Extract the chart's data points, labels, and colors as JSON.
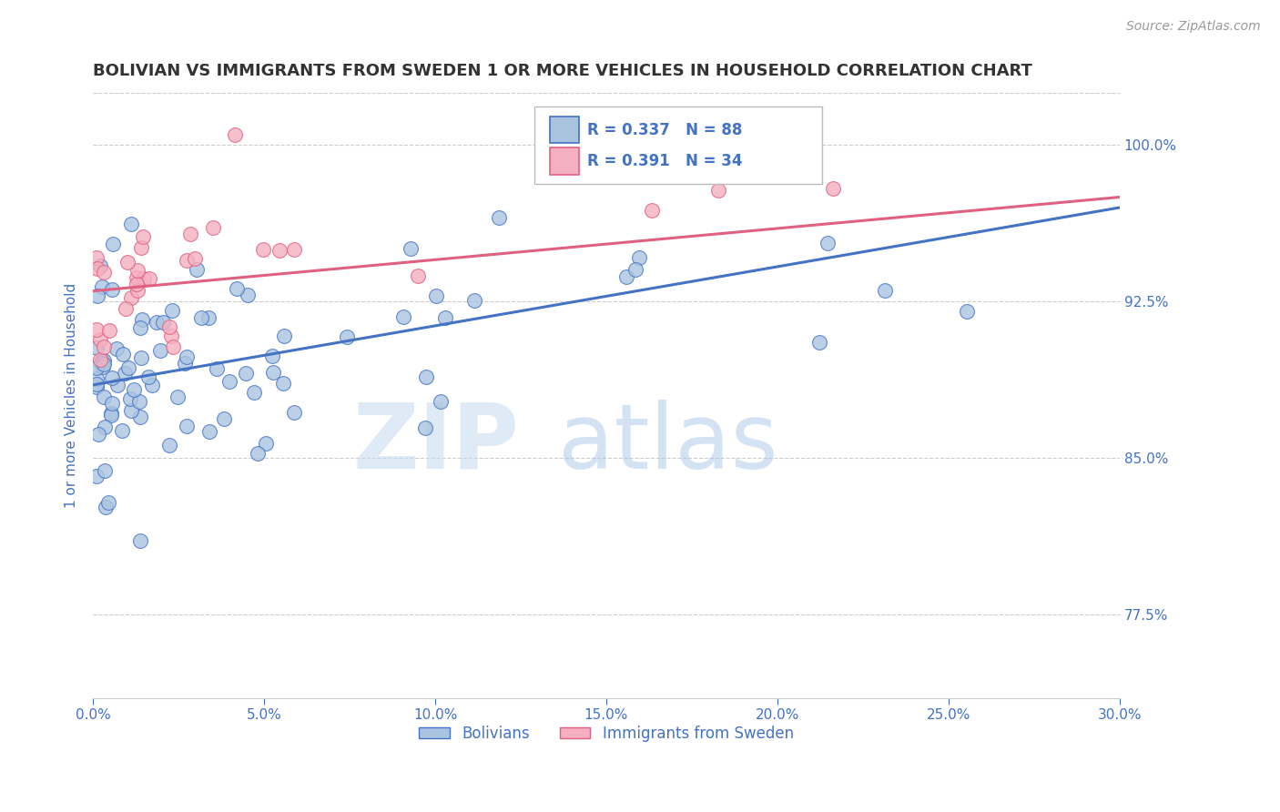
{
  "title": "BOLIVIAN VS IMMIGRANTS FROM SWEDEN 1 OR MORE VEHICLES IN HOUSEHOLD CORRELATION CHART",
  "source_text": "Source: ZipAtlas.com",
  "ylabel": "1 or more Vehicles in Household",
  "xlim": [
    0.0,
    0.3
  ],
  "ylim": [
    0.735,
    1.025
  ],
  "xtick_labels": [
    "0.0%",
    "5.0%",
    "10.0%",
    "15.0%",
    "20.0%",
    "25.0%",
    "30.0%"
  ],
  "xtick_values": [
    0.0,
    0.05,
    0.1,
    0.15,
    0.2,
    0.25,
    0.3
  ],
  "ytick_labels": [
    "77.5%",
    "85.0%",
    "92.5%",
    "100.0%"
  ],
  "ytick_values": [
    0.775,
    0.85,
    0.925,
    1.0
  ],
  "bolivians_color": "#aac4e0",
  "sweden_color": "#f4afc0",
  "trendline_bolivians_color": "#4472c4",
  "trendline_sweden_color": "#e06080",
  "R_bolivians": 0.337,
  "N_bolivians": 88,
  "R_sweden": 0.391,
  "N_sweden": 34,
  "legend_label_bolivians": "Bolivians",
  "legend_label_sweden": "Immigrants from Sweden",
  "watermark_zip": "ZIP",
  "watermark_atlas": "atlas",
  "background_color": "#ffffff",
  "grid_color": "#cccccc",
  "title_color": "#333333",
  "tick_color": "#4472c4",
  "trendline_b_x0": 0.0,
  "trendline_b_y0": 0.885,
  "trendline_b_x1": 0.3,
  "trendline_b_y1": 0.97,
  "trendline_s_x0": 0.0,
  "trendline_s_y0": 0.93,
  "trendline_s_x1": 0.3,
  "trendline_s_y1": 0.975
}
